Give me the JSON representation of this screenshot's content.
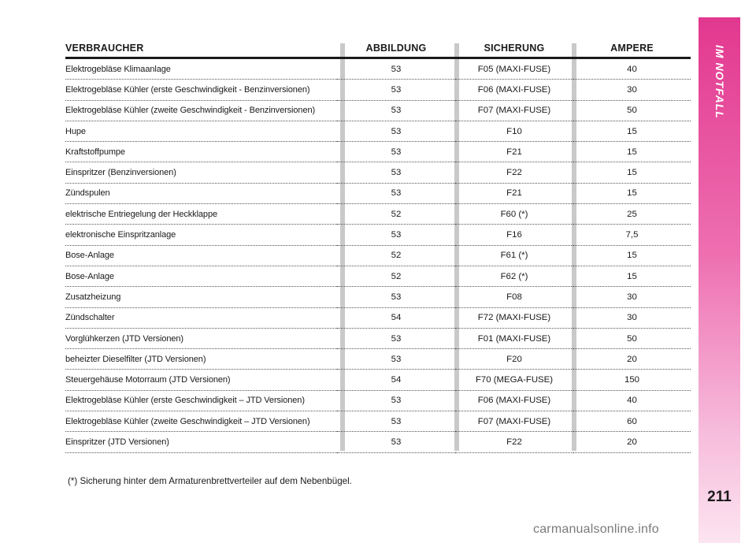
{
  "table": {
    "headers": {
      "consumer": "VERBRAUCHER",
      "figure": "ABBILDUNG",
      "fuse": "SICHERUNG",
      "amperes": "AMPERE"
    },
    "rows": [
      {
        "consumer": "Elektrogebläse Klimaanlage",
        "figure": "53",
        "fuse": "F05 (MAXI-FUSE)",
        "amperes": "40"
      },
      {
        "consumer": "Elektrogebläse Kühler (erste Geschwindigkeit - Benzinversionen)",
        "figure": "53",
        "fuse": "F06 (MAXI-FUSE)",
        "amperes": "30"
      },
      {
        "consumer": "Elektrogebläse Kühler (zweite Geschwindigkeit - Benzinversionen)",
        "figure": "53",
        "fuse": "F07 (MAXI-FUSE)",
        "amperes": "50"
      },
      {
        "consumer": "Hupe",
        "figure": "53",
        "fuse": "F10",
        "amperes": "15"
      },
      {
        "consumer": "Kraftstoffpumpe",
        "figure": "53",
        "fuse": "F21",
        "amperes": "15"
      },
      {
        "consumer": "Einspritzer (Benzinversionen)",
        "figure": "53",
        "fuse": "F22",
        "amperes": "15"
      },
      {
        "consumer": "Zündspulen",
        "figure": "53",
        "fuse": "F21",
        "amperes": "15"
      },
      {
        "consumer": "elektrische Entriegelung der Heckklappe",
        "figure": "52",
        "fuse": "F60 (*)",
        "amperes": "25"
      },
      {
        "consumer": "elektronische Einspritzanlage",
        "figure": "53",
        "fuse": "F16",
        "amperes": "7,5"
      },
      {
        "consumer": "Bose-Anlage",
        "figure": "52",
        "fuse": "F61 (*)",
        "amperes": "15"
      },
      {
        "consumer": "Bose-Anlage",
        "figure": "52",
        "fuse": "F62 (*)",
        "amperes": "15"
      },
      {
        "consumer": "Zusatzheizung",
        "figure": "53",
        "fuse": "F08",
        "amperes": "30"
      },
      {
        "consumer": "Zündschalter",
        "figure": "54",
        "fuse": "F72 (MAXI-FUSE)",
        "amperes": "30"
      },
      {
        "consumer": "Vorglühkerzen (JTD Versionen)",
        "figure": "53",
        "fuse": "F01 (MAXI-FUSE)",
        "amperes": "50"
      },
      {
        "consumer": "beheizter Dieselfilter (JTD Versionen)",
        "figure": "53",
        "fuse": "F20",
        "amperes": "20"
      },
      {
        "consumer": "Steuergehäuse Motorraum (JTD Versionen)",
        "figure": "54",
        "fuse": "F70 (MEGA-FUSE)",
        "amperes": "150"
      },
      {
        "consumer": "Elektrogebläse Kühler (erste Geschwindigkeit – JTD Versionen)",
        "figure": "53",
        "fuse": "F06 (MAXI-FUSE)",
        "amperes": "40"
      },
      {
        "consumer": "Elektrogebläse Kühler (zweite Geschwindigkeit – JTD Versionen)",
        "figure": "53",
        "fuse": "F07 (MAXI-FUSE)",
        "amperes": "60"
      },
      {
        "consumer": "Einspritzer (JTD Versionen)",
        "figure": "53",
        "fuse": "F22",
        "amperes": "20"
      }
    ]
  },
  "footnote": "(*) Sicherung hinter dem Armaturenbrettverteiler auf dem Nebenbügel.",
  "sidebar": {
    "section_title": "IM NOTFALL",
    "page_number": "211"
  },
  "watermark": "carmanualsonline.info",
  "colors": {
    "accent_top": "#e2388f",
    "accent_bottom": "#fce4f0",
    "divider": "#c9c9c9"
  }
}
